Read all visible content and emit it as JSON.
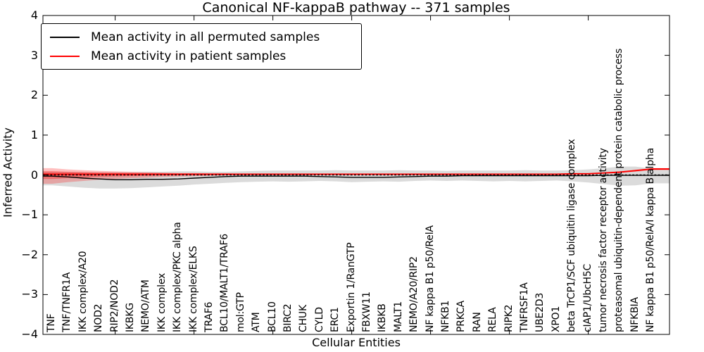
{
  "title": "Canonical NF-kappaB pathway -- 371 samples",
  "background_color": "#ffffff",
  "chart_data": {
    "type": "line",
    "title": "Canonical NF-kappaB pathway -- 371 samples",
    "xlabel": "Cellular Entities",
    "ylabel": "Inferred Activity",
    "ylim": [
      -4,
      4
    ],
    "grid": false,
    "legend_position": "upper-left",
    "y_ticks": [
      "4",
      "3",
      "2",
      "1",
      "0",
      "−1",
      "−2",
      "−3",
      "−4"
    ],
    "y_tick_values": [
      4,
      3,
      2,
      1,
      0,
      -1,
      -2,
      -3,
      -4
    ],
    "x_major_tick_indices": [
      4,
      9,
      14,
      19,
      24,
      29,
      34
    ],
    "categories": [
      "TNF",
      "TNF/TNFR1A",
      "IKK complex/A20",
      "NOD2",
      "RIP2/NOD2",
      "IKBKG",
      "NEMO/ATM",
      "IKK complex",
      "IKK complex/PKC alpha",
      "IKK complex/ELKS",
      "TRAF6",
      "BCL10/MALT1/TRAF6",
      "mol:GTP",
      "ATM",
      "BCL10",
      "BIRC2",
      "CHUK",
      "CYLD",
      "ERC1",
      "Exportin 1/RanGTP",
      "FBXW11",
      "IKBKB",
      "MALT1",
      "NEMO/A20/RIP2",
      "NF kappa B1 p50/RelA",
      "NFKB1",
      "PRKCA",
      "RAN",
      "RELA",
      "RIPK2",
      "TNFRSF1A",
      "UBE2D3",
      "XPO1",
      "beta TrCP1/SCF ubiquitin ligase complex",
      "cIAP1/UbcH5C",
      "tumor necrosis factor receptor activity",
      "proteasomal ubiquitin-dependent protein catabolic process",
      "NFKBIA",
      "NF kappa B1 p50/RelA/I kappa B alpha"
    ],
    "series": [
      {
        "name": "Mean activity in all permuted samples",
        "color": "#000000",
        "style": "solid",
        "values": [
          -0.03,
          -0.05,
          -0.08,
          -0.1,
          -0.12,
          -0.12,
          -0.11,
          -0.11,
          -0.1,
          -0.08,
          -0.06,
          -0.04,
          -0.03,
          -0.03,
          -0.03,
          -0.03,
          -0.03,
          -0.04,
          -0.05,
          -0.06,
          -0.06,
          -0.06,
          -0.05,
          -0.04,
          -0.03,
          -0.03,
          -0.02,
          -0.02,
          -0.02,
          -0.02,
          -0.02,
          -0.02,
          -0.02,
          -0.02,
          -0.02,
          -0.01,
          -0.01,
          -0.01,
          -0.01
        ]
      },
      {
        "name": "Mean activity in patient samples",
        "color": "#ff0000",
        "style": "solid",
        "values": [
          0.02,
          0.02,
          0.02,
          0.02,
          0.02,
          0.02,
          0.02,
          0.02,
          0.02,
          0.02,
          0.02,
          0.02,
          0.02,
          0.02,
          0.02,
          0.02,
          0.02,
          0.02,
          0.02,
          0.02,
          0.02,
          0.02,
          0.02,
          0.02,
          0.02,
          0.02,
          0.02,
          0.02,
          0.02,
          0.02,
          0.02,
          0.02,
          0.02,
          0.03,
          0.03,
          0.05,
          0.07,
          0.11,
          0.15
        ]
      }
    ],
    "bands": [
      {
        "name": "permuted-samples-range",
        "color": "#999999",
        "alpha": 0.35,
        "hi": [
          0.08,
          0.08,
          0.07,
          0.07,
          0.07,
          0.07,
          0.08,
          0.08,
          0.09,
          0.09,
          0.08,
          0.08,
          0.09,
          0.1,
          0.11,
          0.11,
          0.11,
          0.11,
          0.12,
          0.11,
          0.11,
          0.11,
          0.12,
          0.11,
          0.11,
          0.1,
          0.11,
          0.11,
          0.11,
          0.11,
          0.12,
          0.11,
          0.11,
          0.12,
          0.14,
          0.17,
          0.21,
          0.21,
          0.16
        ],
        "lo": [
          -0.26,
          -0.29,
          -0.32,
          -0.34,
          -0.34,
          -0.33,
          -0.31,
          -0.29,
          -0.27,
          -0.24,
          -0.22,
          -0.2,
          -0.18,
          -0.17,
          -0.16,
          -0.17,
          -0.16,
          -0.15,
          -0.16,
          -0.18,
          -0.17,
          -0.16,
          -0.17,
          -0.15,
          -0.14,
          -0.15,
          -0.14,
          -0.15,
          -0.16,
          -0.15,
          -0.16,
          -0.15,
          -0.14,
          -0.16,
          -0.19,
          -0.23,
          -0.27,
          -0.26,
          -0.21
        ]
      },
      {
        "name": "patient-samples-range",
        "color": "#ff0000",
        "alpha": 0.25,
        "hi": [
          0.17,
          0.14,
          0.12,
          0.1,
          0.09,
          0.08,
          0.07,
          0.06,
          0.05,
          0.05,
          0.04,
          0.04,
          0.03,
          0.03,
          0.03,
          0.03,
          0.03,
          0.03,
          0.03,
          0.03,
          0.03,
          0.03,
          0.03,
          0.03,
          0.03,
          0.03,
          0.03,
          0.03,
          0.03,
          0.03,
          0.03,
          0.03,
          0.03,
          0.04,
          0.04,
          0.06,
          0.09,
          0.13,
          0.17
        ],
        "lo": [
          -0.22,
          -0.18,
          -0.15,
          -0.12,
          -0.1,
          -0.08,
          -0.07,
          -0.05,
          -0.04,
          -0.03,
          -0.02,
          -0.01,
          0.0,
          0.0,
          0.01,
          0.01,
          0.01,
          0.01,
          0.01,
          0.01,
          0.01,
          0.01,
          0.01,
          0.01,
          0.01,
          0.01,
          0.01,
          0.01,
          0.01,
          0.01,
          0.01,
          0.01,
          0.01,
          0.02,
          0.02,
          0.03,
          0.05,
          0.08,
          0.12
        ]
      }
    ],
    "zero_line": {
      "value": 0,
      "color": "#000000",
      "style": "dashed"
    }
  }
}
